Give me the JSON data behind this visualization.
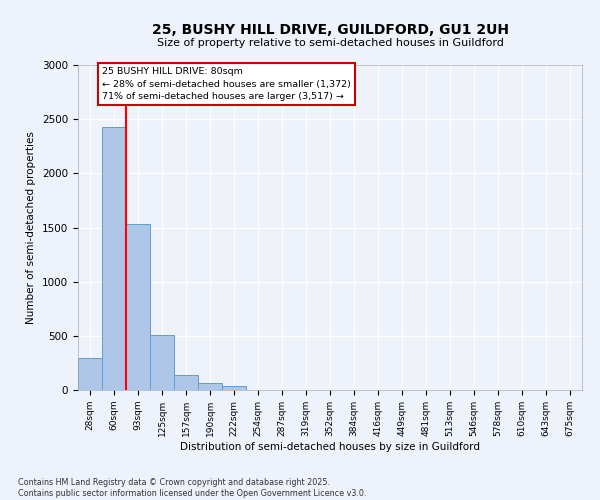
{
  "title_line1": "25, BUSHY HILL DRIVE, GUILDFORD, GU1 2UH",
  "title_line2": "Size of property relative to semi-detached houses in Guildford",
  "xlabel": "Distribution of semi-detached houses by size in Guildford",
  "ylabel": "Number of semi-detached properties",
  "bin_labels": [
    "28sqm",
    "60sqm",
    "93sqm",
    "125sqm",
    "157sqm",
    "190sqm",
    "222sqm",
    "254sqm",
    "287sqm",
    "319sqm",
    "352sqm",
    "384sqm",
    "416sqm",
    "449sqm",
    "481sqm",
    "513sqm",
    "546sqm",
    "578sqm",
    "610sqm",
    "643sqm",
    "675sqm"
  ],
  "bin_values": [
    300,
    2430,
    1530,
    510,
    140,
    65,
    40,
    0,
    0,
    0,
    0,
    0,
    0,
    0,
    0,
    0,
    0,
    0,
    0,
    0,
    0
  ],
  "bar_color": "#aec6e8",
  "bar_edge_color": "#5a9fd4",
  "red_line_x": 1.5,
  "annotation_title": "25 BUSHY HILL DRIVE: 80sqm",
  "annotation_line2": "← 28% of semi-detached houses are smaller (1,372)",
  "annotation_line3": "71% of semi-detached houses are larger (3,517) →",
  "ylim": [
    0,
    3000
  ],
  "footnote_line1": "Contains HM Land Registry data © Crown copyright and database right 2025.",
  "footnote_line2": "Contains public sector information licensed under the Open Government Licence v3.0.",
  "background_color": "#eef2fb",
  "grid_color": "#ffffff",
  "annotation_box_color": "#ffffff",
  "annotation_box_edge": "#cc0000"
}
